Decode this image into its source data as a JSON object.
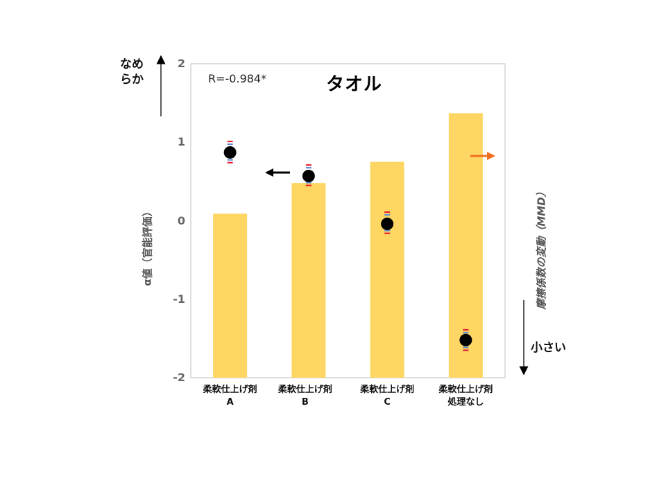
{
  "chart_data": {
    "type": "bar",
    "title": "タオル",
    "annotation": "R=-0.984*",
    "ylabel_left": "α値（官能評価）",
    "ylabel_right": "摩擦係数の変動（MMD）",
    "annotation_top": "なめらか",
    "annotation_bottom": "小さい",
    "ylim": [
      -2,
      2
    ],
    "yticks": [
      2,
      1,
      0,
      -1,
      -2
    ],
    "categories": [
      [
        "柔軟仕上げ剤",
        "A"
      ],
      [
        "柔軟仕上げ剤",
        "B"
      ],
      [
        "柔軟仕上げ剤",
        "C"
      ],
      [
        "柔軟仕上げ剤",
        "処理なし"
      ]
    ],
    "bar_series": {
      "axis": "right",
      "color": "#fdd663",
      "values_relative": [
        0.09,
        0.48,
        0.75,
        1.37
      ]
    },
    "point_series": {
      "axis": "left",
      "color": "#000000",
      "values": [
        0.87,
        0.57,
        -0.04,
        -1.52
      ],
      "error_upper": [
        1.01,
        0.71,
        0.11,
        -1.39
      ],
      "error_lower": [
        0.74,
        0.45,
        -0.16,
        -1.65
      ]
    },
    "arrows": {
      "left_axis_color": "#000000",
      "right_axis_color": "#f07020"
    },
    "colors": {
      "bar": "#fdd663",
      "point": "#000000",
      "error_red": "#e8192c",
      "error_blue": "#5b8bd6",
      "axis_frame": "#bfbfbf"
    }
  }
}
